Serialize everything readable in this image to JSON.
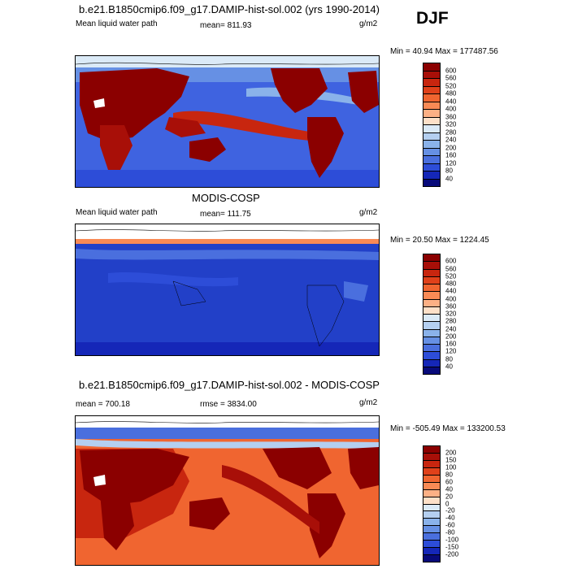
{
  "season": "DJF",
  "panels": [
    {
      "title": "b.e21.B1850cmip6.f09_g17.DAMIP-hist-sol.002 (yrs 1990-2014)",
      "left_label": "Mean liquid water path",
      "center_label": "mean= 811.93",
      "units": "g/m2",
      "minmax": "Min = 40.94 Max = 177487.56",
      "colorbar": {
        "labels": [
          "600",
          "560",
          "520",
          "480",
          "440",
          "400",
          "360",
          "320",
          "280",
          "240",
          "200",
          "160",
          "120",
          "80",
          "40"
        ],
        "colors": [
          "#8b0000",
          "#a80f08",
          "#c8260f",
          "#e0411a",
          "#f06530",
          "#f98a55",
          "#fcb085",
          "#fde0c8",
          "#dbeaf7",
          "#b4cff0",
          "#8ab2ea",
          "#6690e4",
          "#4a6fde",
          "#2d4dd8",
          "#1527b8",
          "#080a7a"
        ]
      }
    },
    {
      "title": "MODIS-COSP",
      "left_label": "Mean liquid water path",
      "center_label": "mean= 111.75",
      "units": "g/m2",
      "minmax": "Min = 20.50 Max = 1224.45",
      "colorbar": {
        "labels": [
          "600",
          "560",
          "520",
          "480",
          "440",
          "400",
          "360",
          "320",
          "280",
          "240",
          "200",
          "160",
          "120",
          "80",
          "40"
        ],
        "colors": [
          "#8b0000",
          "#a80f08",
          "#c8260f",
          "#e0411a",
          "#f06530",
          "#f98a55",
          "#fcb085",
          "#fde0c8",
          "#dbeaf7",
          "#b4cff0",
          "#8ab2ea",
          "#6690e4",
          "#4a6fde",
          "#2d4dd8",
          "#1527b8",
          "#080a7a"
        ]
      }
    },
    {
      "title": "b.e21.B1850cmip6.f09_g17.DAMIP-hist-sol.002 - MODIS-COSP",
      "left_label": "mean = 700.18",
      "center_label": "rmse = 3834.00",
      "units": "g/m2",
      "minmax": "Min = -505.49 Max = 133200.53",
      "colorbar": {
        "labels": [
          "200",
          "150",
          "100",
          "80",
          "60",
          "40",
          "20",
          "0",
          "-20",
          "-40",
          "-60",
          "-80",
          "-100",
          "-150",
          "-200"
        ],
        "colors": [
          "#8b0000",
          "#a80f08",
          "#c8260f",
          "#e0411a",
          "#f06530",
          "#f98a55",
          "#fcb085",
          "#fde0c8",
          "#dbeaf7",
          "#b4cff0",
          "#8ab2ea",
          "#6690e4",
          "#4a6fde",
          "#2d4dd8",
          "#1527b8",
          "#080a7a"
        ]
      }
    }
  ],
  "colors": {
    "ocean_top": "#3f63e0",
    "ocean_mid": "#2240c8",
    "ocean_diff": "#f06530",
    "land_hot": "#8b0000",
    "missing": "#ffffff"
  }
}
